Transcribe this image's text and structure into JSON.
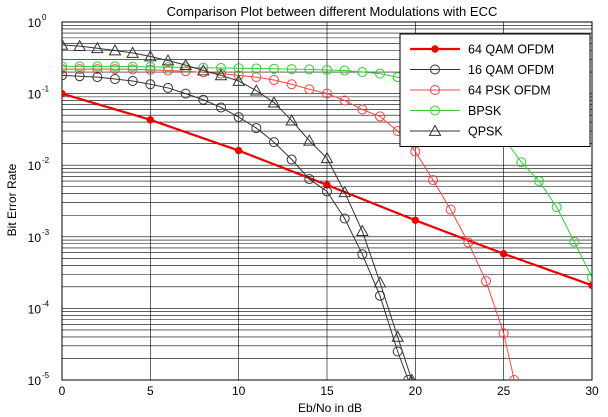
{
  "chart_data": {
    "type": "line",
    "title": "Comparison Plot between different Modulations with ECC",
    "xlabel": "Eb/No in dB",
    "ylabel": "Bit Error Rate",
    "xlim": [
      0,
      30
    ],
    "ylim": [
      1e-05,
      1
    ],
    "yscale": "log",
    "grid": true,
    "legend_position": "top-right",
    "x_ticks": [
      "0",
      "5",
      "10",
      "15",
      "20",
      "25",
      "30"
    ],
    "y_ticks": [
      {
        "base": "10",
        "exp": "0"
      },
      {
        "base": "10",
        "exp": "-1"
      },
      {
        "base": "10",
        "exp": "-2"
      },
      {
        "base": "10",
        "exp": "-3"
      },
      {
        "base": "10",
        "exp": "-4"
      },
      {
        "base": "10",
        "exp": "-5"
      }
    ],
    "series": [
      {
        "name": "64 QAM OFDM",
        "color": "#ee0000",
        "marker": "dot",
        "line_width": 2.2,
        "x": [
          0,
          5,
          10,
          15,
          20,
          25,
          30
        ],
        "y": [
          0.1,
          0.043,
          0.016,
          0.0053,
          0.0017,
          0.00058,
          0.00021
        ]
      },
      {
        "name": "16 QAM OFDM",
        "color": "#333333",
        "marker": "circle",
        "line_width": 1,
        "x": [
          0,
          1,
          2,
          3,
          4,
          5,
          6,
          7,
          8,
          9,
          10,
          11,
          12,
          13,
          14,
          15,
          16,
          17,
          18,
          19,
          19.6
        ],
        "y": [
          0.18,
          0.175,
          0.17,
          0.16,
          0.15,
          0.135,
          0.12,
          0.1,
          0.082,
          0.064,
          0.047,
          0.033,
          0.021,
          0.012,
          0.0064,
          0.0043,
          0.0018,
          0.00057,
          0.00015,
          2.5e-05,
          1e-05
        ]
      },
      {
        "name": "64 PSK OFDM",
        "color": "#ff4444",
        "marker": "circle",
        "line_width": 1,
        "x": [
          0,
          1,
          2,
          3,
          4,
          5,
          6,
          7,
          8,
          9,
          10,
          11,
          12,
          13,
          14,
          15,
          16,
          17,
          18,
          19,
          20,
          21,
          22,
          23,
          24,
          25,
          25.6
        ],
        "y": [
          0.22,
          0.22,
          0.22,
          0.22,
          0.218,
          0.215,
          0.21,
          0.205,
          0.198,
          0.19,
          0.18,
          0.17,
          0.155,
          0.135,
          0.115,
          0.1,
          0.08,
          0.06,
          0.048,
          0.03,
          0.0155,
          0.0062,
          0.0024,
          0.00083,
          0.00024,
          4.5e-05,
          1e-05
        ]
      },
      {
        "name": "BPSK",
        "color": "#33cc33",
        "marker": "circle",
        "line_width": 1,
        "x": [
          0,
          1,
          2,
          3,
          4,
          5,
          6,
          7,
          8,
          9,
          10,
          11,
          12,
          13,
          14,
          15,
          16,
          17,
          18,
          19,
          20,
          21,
          22,
          23,
          24,
          25,
          26,
          27,
          28,
          29,
          30
        ],
        "y": [
          0.24,
          0.24,
          0.24,
          0.24,
          0.238,
          0.236,
          0.234,
          0.232,
          0.23,
          0.228,
          0.226,
          0.224,
          0.222,
          0.22,
          0.218,
          0.214,
          0.21,
          0.2,
          0.19,
          0.17,
          0.15,
          0.13,
          0.1,
          0.077,
          0.044,
          0.024,
          0.011,
          0.006,
          0.0026,
          0.00085,
          0.00027
        ]
      },
      {
        "name": "QPSK",
        "color": "#333333",
        "marker": "triangle",
        "line_width": 1,
        "x": [
          0,
          1,
          2,
          3,
          4,
          5,
          6,
          7,
          8,
          9,
          10,
          11,
          12,
          13,
          14,
          15,
          16,
          17,
          18,
          19,
          19.8
        ],
        "y": [
          0.48,
          0.46,
          0.43,
          0.4,
          0.37,
          0.33,
          0.29,
          0.25,
          0.21,
          0.18,
          0.15,
          0.11,
          0.075,
          0.042,
          0.022,
          0.0125,
          0.0042,
          0.0012,
          0.00023,
          4e-05,
          1e-05
        ]
      }
    ]
  }
}
